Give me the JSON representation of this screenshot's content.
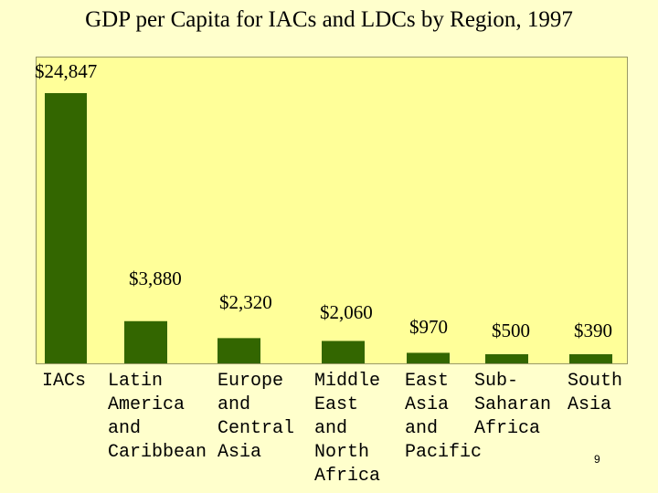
{
  "page": {
    "number": "9"
  },
  "colors": {
    "background": "#ffffcc",
    "plot_area": "#ffff99",
    "bar": "#336600"
  },
  "chart_data": {
    "type": "bar",
    "title": "GDP per Capita for IACs and LDCs by Region, 1997",
    "xlabel": "",
    "ylabel": "",
    "grid": false,
    "ylim": [
      0,
      24847
    ],
    "categories": [
      "IACs",
      "Latin America and Caribbean",
      "Europe and Central Asia",
      "Middle East and North Africa",
      "East Asia and Pacific",
      "Sub-Saharan Africa",
      "South Asia"
    ],
    "category_lines": [
      [
        "IACs"
      ],
      [
        "Latin",
        "America",
        "and",
        "Caribbean"
      ],
      [
        "Europe",
        "and",
        "Central",
        "Asia"
      ],
      [
        "Middle",
        "East",
        "and",
        "North",
        "Africa"
      ],
      [
        "East",
        "Asia",
        "and",
        "Pacific"
      ],
      [
        "Sub-",
        "Saharan",
        "Africa"
      ],
      [
        "South",
        "Asia"
      ]
    ],
    "values": [
      24847,
      3880,
      2320,
      2060,
      970,
      500,
      390
    ],
    "value_labels": [
      "$24,847",
      "$3,880",
      "$2,320",
      "$2,060",
      "$970",
      "$500",
      "$390"
    ]
  }
}
